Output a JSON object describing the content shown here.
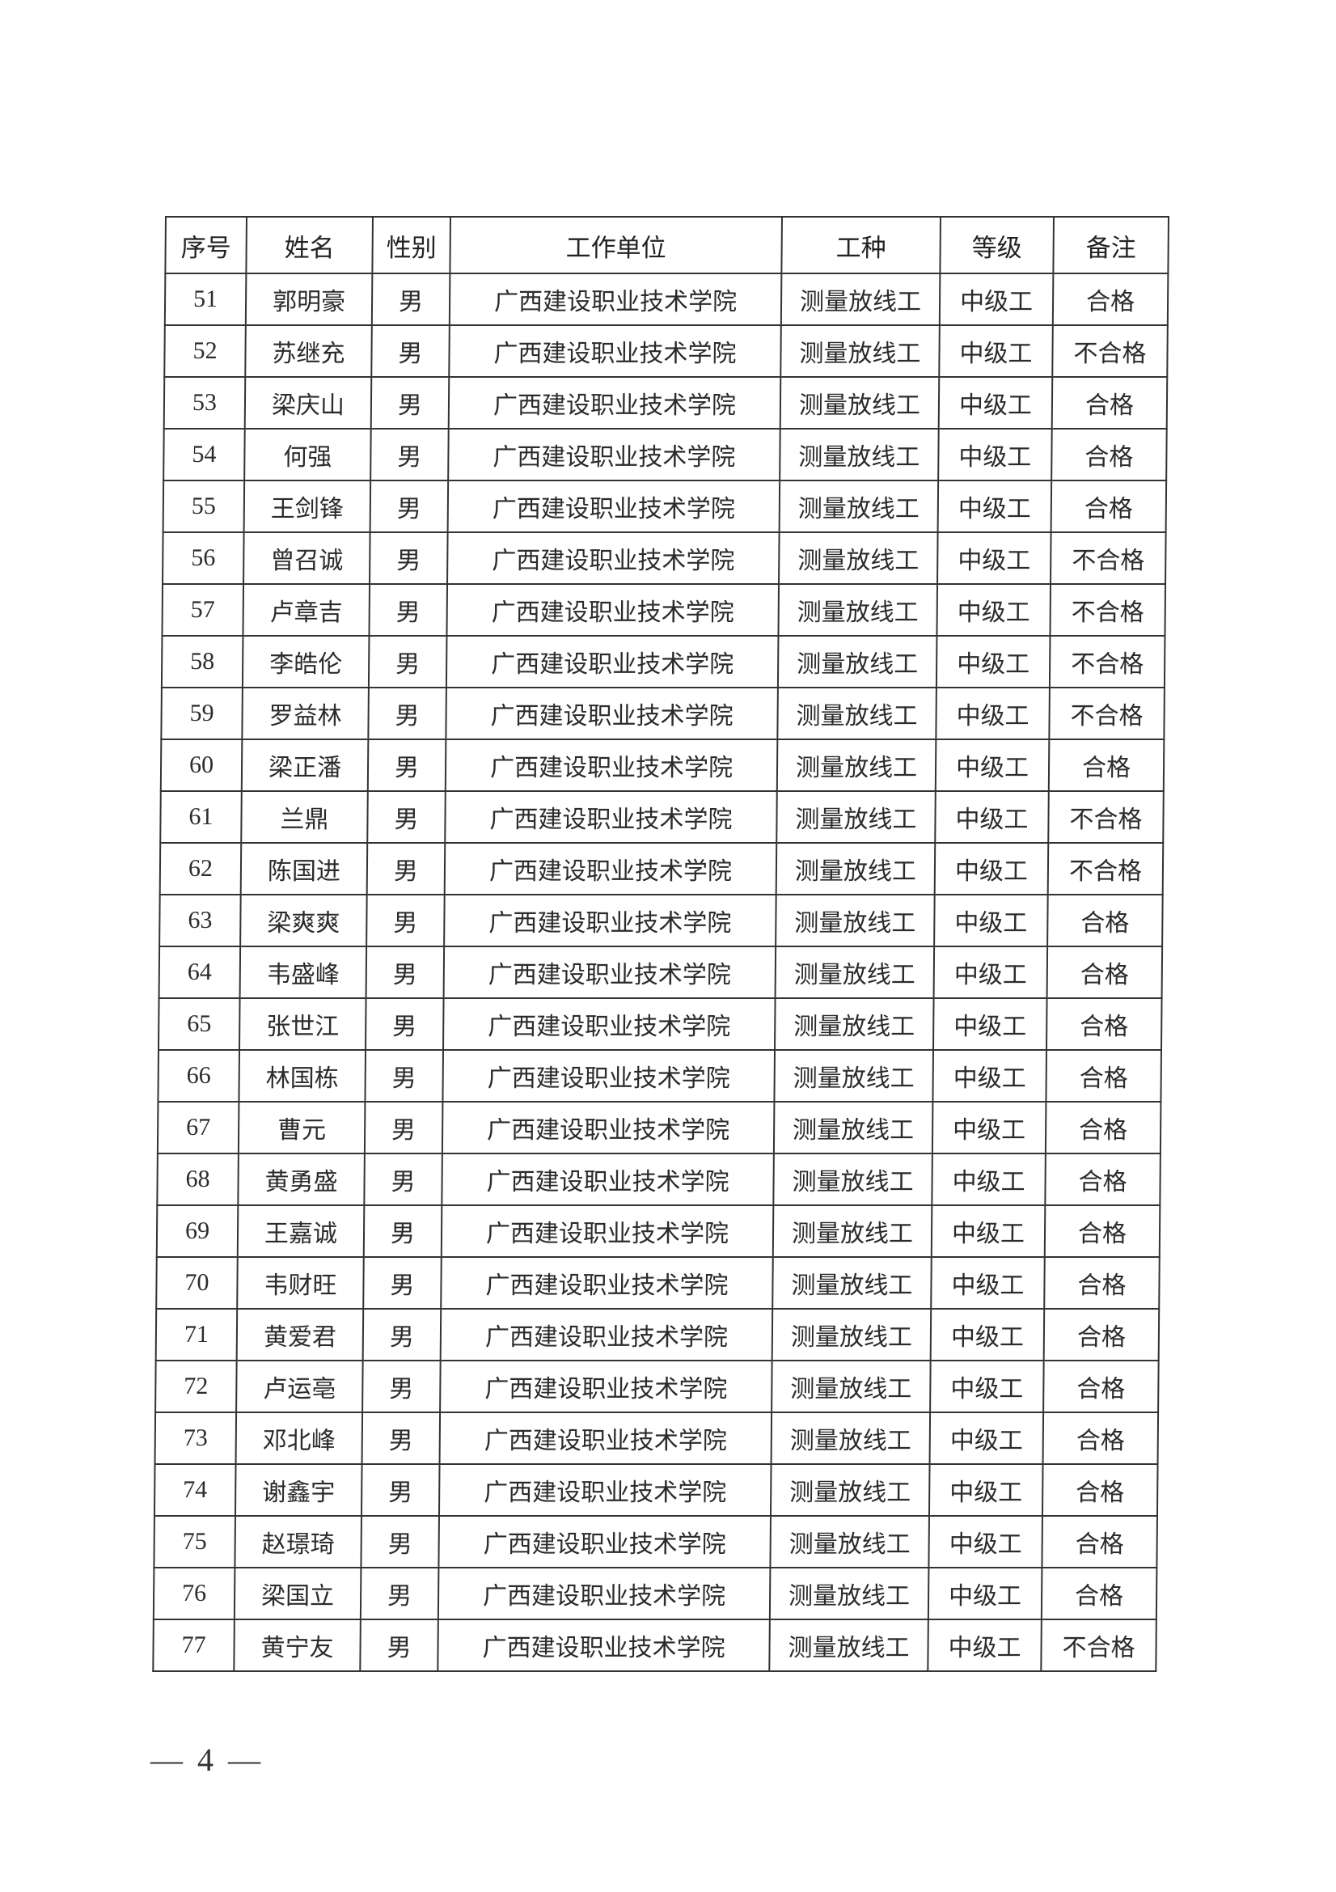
{
  "table": {
    "headers": [
      "序号",
      "姓名",
      "性别",
      "工作单位",
      "工种",
      "等级",
      "备注"
    ],
    "rows": [
      [
        "51",
        "郭明豪",
        "男",
        "广西建设职业技术学院",
        "测量放线工",
        "中级工",
        "合格"
      ],
      [
        "52",
        "苏继充",
        "男",
        "广西建设职业技术学院",
        "测量放线工",
        "中级工",
        "不合格"
      ],
      [
        "53",
        "梁庆山",
        "男",
        "广西建设职业技术学院",
        "测量放线工",
        "中级工",
        "合格"
      ],
      [
        "54",
        "何强",
        "男",
        "广西建设职业技术学院",
        "测量放线工",
        "中级工",
        "合格"
      ],
      [
        "55",
        "王剑锋",
        "男",
        "广西建设职业技术学院",
        "测量放线工",
        "中级工",
        "合格"
      ],
      [
        "56",
        "曾召诚",
        "男",
        "广西建设职业技术学院",
        "测量放线工",
        "中级工",
        "不合格"
      ],
      [
        "57",
        "卢章吉",
        "男",
        "广西建设职业技术学院",
        "测量放线工",
        "中级工",
        "不合格"
      ],
      [
        "58",
        "李皓伦",
        "男",
        "广西建设职业技术学院",
        "测量放线工",
        "中级工",
        "不合格"
      ],
      [
        "59",
        "罗益林",
        "男",
        "广西建设职业技术学院",
        "测量放线工",
        "中级工",
        "不合格"
      ],
      [
        "60",
        "梁正潘",
        "男",
        "广西建设职业技术学院",
        "测量放线工",
        "中级工",
        "合格"
      ],
      [
        "61",
        "兰鼎",
        "男",
        "广西建设职业技术学院",
        "测量放线工",
        "中级工",
        "不合格"
      ],
      [
        "62",
        "陈国进",
        "男",
        "广西建设职业技术学院",
        "测量放线工",
        "中级工",
        "不合格"
      ],
      [
        "63",
        "梁爽爽",
        "男",
        "广西建设职业技术学院",
        "测量放线工",
        "中级工",
        "合格"
      ],
      [
        "64",
        "韦盛峰",
        "男",
        "广西建设职业技术学院",
        "测量放线工",
        "中级工",
        "合格"
      ],
      [
        "65",
        "张世江",
        "男",
        "广西建设职业技术学院",
        "测量放线工",
        "中级工",
        "合格"
      ],
      [
        "66",
        "林国栋",
        "男",
        "广西建设职业技术学院",
        "测量放线工",
        "中级工",
        "合格"
      ],
      [
        "67",
        "曹元",
        "男",
        "广西建设职业技术学院",
        "测量放线工",
        "中级工",
        "合格"
      ],
      [
        "68",
        "黄勇盛",
        "男",
        "广西建设职业技术学院",
        "测量放线工",
        "中级工",
        "合格"
      ],
      [
        "69",
        "王嘉诚",
        "男",
        "广西建设职业技术学院",
        "测量放线工",
        "中级工",
        "合格"
      ],
      [
        "70",
        "韦财旺",
        "男",
        "广西建设职业技术学院",
        "测量放线工",
        "中级工",
        "合格"
      ],
      [
        "71",
        "黄爱君",
        "男",
        "广西建设职业技术学院",
        "测量放线工",
        "中级工",
        "合格"
      ],
      [
        "72",
        "卢运亳",
        "男",
        "广西建设职业技术学院",
        "测量放线工",
        "中级工",
        "合格"
      ],
      [
        "73",
        "邓北峰",
        "男",
        "广西建设职业技术学院",
        "测量放线工",
        "中级工",
        "合格"
      ],
      [
        "74",
        "谢鑫宇",
        "男",
        "广西建设职业技术学院",
        "测量放线工",
        "中级工",
        "合格"
      ],
      [
        "75",
        "赵璟琦",
        "男",
        "广西建设职业技术学院",
        "测量放线工",
        "中级工",
        "合格"
      ],
      [
        "76",
        "梁国立",
        "男",
        "广西建设职业技术学院",
        "测量放线工",
        "中级工",
        "合格"
      ],
      [
        "77",
        "黄宁友",
        "男",
        "广西建设职业技术学院",
        "测量放线工",
        "中级工",
        "不合格"
      ]
    ]
  },
  "footer": {
    "page_number": "— 4 —"
  }
}
